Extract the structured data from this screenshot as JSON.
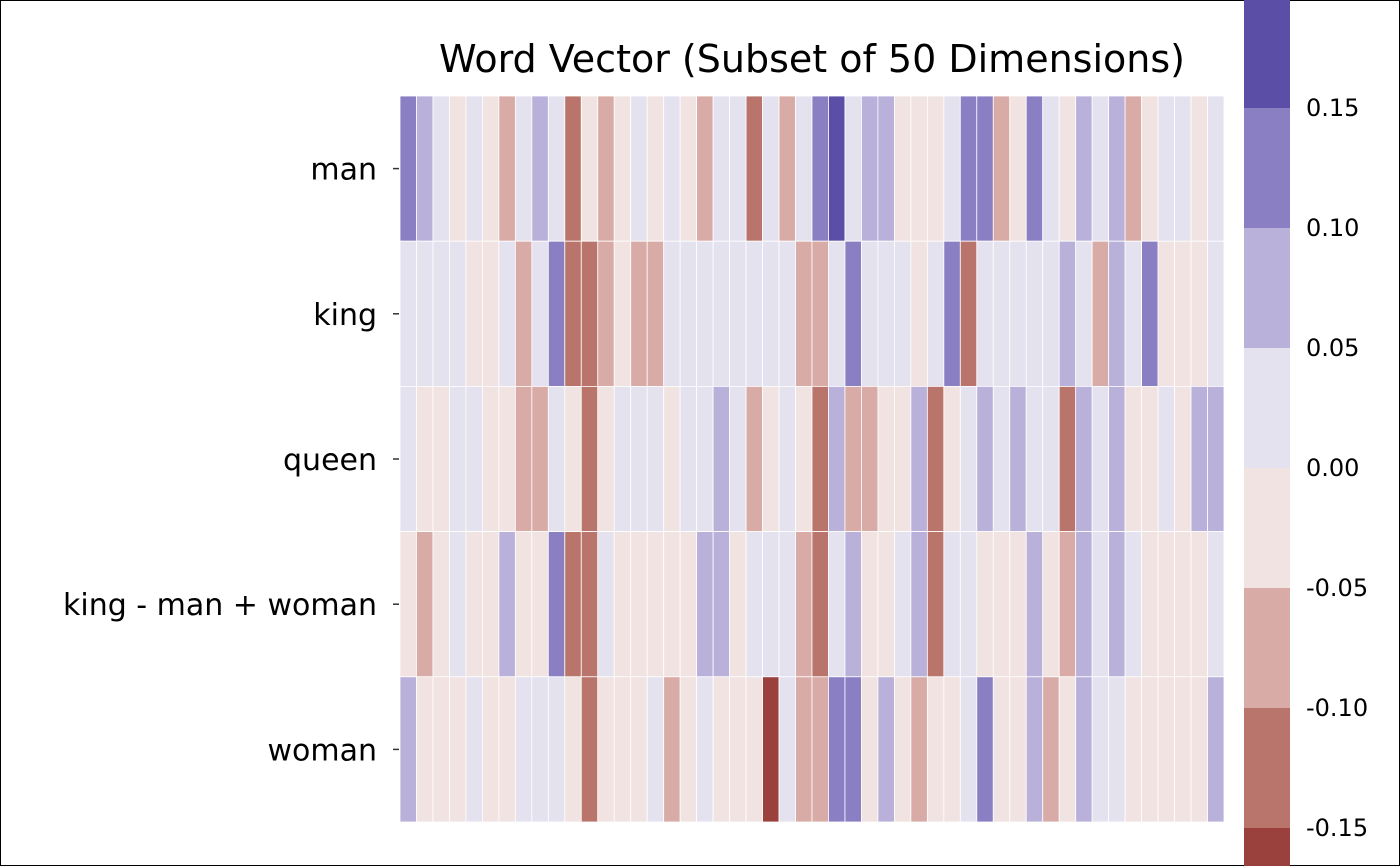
{
  "chart_data": {
    "type": "heatmap",
    "title": "Word Vector (Subset of 50 Dimensions)",
    "rows": [
      "man",
      "king",
      "queen",
      "king - man + woman",
      "woman"
    ],
    "colorbar": {
      "ticks": [
        0.15,
        0.1,
        0.05,
        0.0,
        -0.05,
        -0.1,
        -0.15
      ],
      "tick_labels": [
        "0.15",
        "0.10",
        "0.05",
        "0.00",
        "-0.05",
        "-0.10",
        "-0.15"
      ],
      "bins": [
        {
          "from": 0.15,
          "to": 0.2,
          "color": "#5a4ea6"
        },
        {
          "from": 0.1,
          "to": 0.15,
          "color": "#8b7fc4"
        },
        {
          "from": 0.05,
          "to": 0.1,
          "color": "#b9b1da"
        },
        {
          "from": 0.0,
          "to": 0.05,
          "color": "#e4e2ef"
        },
        {
          "from": -0.05,
          "to": 0.0,
          "color": "#f1e3e1"
        },
        {
          "from": -0.1,
          "to": -0.05,
          "color": "#d9aba6"
        },
        {
          "from": -0.15,
          "to": -0.1,
          "color": "#b9756b"
        },
        {
          "from": -0.2,
          "to": -0.15,
          "color": "#9a413d"
        }
      ]
    },
    "values": [
      [
        0.12,
        0.07,
        0.02,
        -0.02,
        0.02,
        -0.02,
        -0.07,
        0.02,
        0.07,
        0.02,
        -0.12,
        -0.02,
        -0.07,
        -0.02,
        0.02,
        -0.02,
        0.02,
        -0.02,
        -0.07,
        0.02,
        0.02,
        -0.12,
        0.02,
        -0.07,
        0.02,
        0.12,
        0.17,
        0.02,
        0.07,
        0.07,
        -0.02,
        -0.02,
        -0.02,
        0.02,
        0.12,
        0.12,
        -0.07,
        -0.02,
        0.12,
        0.02,
        -0.02,
        0.07,
        0.02,
        0.07,
        -0.07,
        -0.02,
        0.02,
        0.02,
        -0.02,
        0.02
      ],
      [
        0.02,
        0.02,
        0.02,
        0.02,
        -0.02,
        -0.02,
        0.02,
        -0.07,
        0.02,
        0.12,
        -0.12,
        -0.12,
        -0.07,
        -0.02,
        -0.07,
        -0.07,
        0.02,
        0.02,
        0.02,
        0.02,
        0.02,
        0.02,
        0.02,
        0.02,
        -0.07,
        -0.07,
        0.02,
        0.12,
        0.02,
        0.02,
        0.02,
        -0.02,
        0.02,
        0.12,
        -0.12,
        0.02,
        0.02,
        0.02,
        0.02,
        0.02,
        0.07,
        0.02,
        -0.07,
        0.07,
        0.02,
        0.12,
        -0.02,
        -0.02,
        -0.02,
        0.02
      ],
      [
        0.02,
        -0.02,
        -0.02,
        0.02,
        0.02,
        -0.02,
        -0.02,
        -0.07,
        -0.07,
        0.02,
        -0.02,
        -0.12,
        -0.02,
        0.02,
        0.02,
        0.02,
        -0.02,
        0.02,
        0.02,
        0.07,
        0.02,
        -0.07,
        -0.02,
        0.02,
        -0.02,
        -0.12,
        0.07,
        -0.07,
        -0.07,
        -0.02,
        -0.02,
        0.07,
        -0.12,
        -0.02,
        0.02,
        0.07,
        0.02,
        0.07,
        0.02,
        0.02,
        -0.12,
        0.07,
        0.02,
        0.07,
        -0.02,
        -0.02,
        0.02,
        -0.02,
        0.07,
        0.07
      ],
      [
        -0.02,
        -0.07,
        -0.02,
        0.02,
        -0.02,
        -0.02,
        0.07,
        -0.02,
        -0.02,
        0.12,
        -0.12,
        -0.12,
        0.02,
        -0.02,
        -0.02,
        -0.02,
        -0.02,
        -0.02,
        0.07,
        0.07,
        -0.02,
        0.02,
        0.02,
        0.02,
        -0.07,
        -0.12,
        0.02,
        0.07,
        -0.02,
        -0.02,
        0.02,
        0.07,
        -0.12,
        0.02,
        0.02,
        -0.02,
        -0.02,
        -0.02,
        0.07,
        -0.02,
        -0.07,
        0.07,
        0.02,
        0.07,
        0.02,
        -0.02,
        -0.02,
        -0.02,
        -0.02,
        0.02
      ],
      [
        0.07,
        -0.02,
        -0.02,
        -0.02,
        0.02,
        -0.02,
        -0.02,
        0.02,
        0.02,
        0.02,
        -0.02,
        -0.12,
        -0.02,
        -0.02,
        -0.02,
        0.02,
        -0.07,
        -0.02,
        0.02,
        -0.02,
        -0.02,
        -0.02,
        -0.17,
        0.02,
        -0.07,
        -0.07,
        0.12,
        0.12,
        -0.02,
        0.07,
        -0.02,
        -0.07,
        -0.02,
        -0.02,
        0.02,
        0.12,
        -0.02,
        -0.02,
        0.07,
        -0.07,
        -0.02,
        0.07,
        0.02,
        0.02,
        -0.02,
        -0.02,
        -0.02,
        -0.02,
        -0.02,
        0.07
      ]
    ]
  }
}
